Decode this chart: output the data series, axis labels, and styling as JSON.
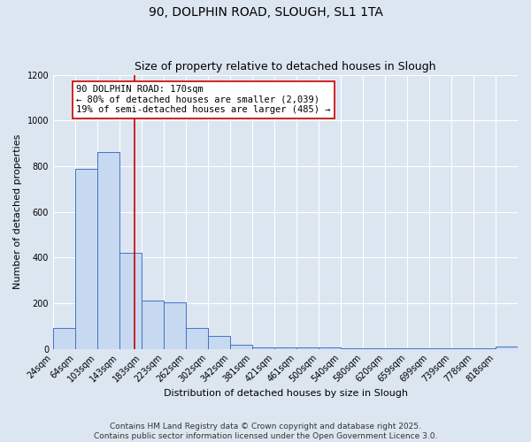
{
  "title": "90, DOLPHIN ROAD, SLOUGH, SL1 1TA",
  "subtitle": "Size of property relative to detached houses in Slough",
  "xlabel": "Distribution of detached houses by size in Slough",
  "ylabel": "Number of detached properties",
  "bin_edges_full": [
    24,
    64,
    103,
    143,
    183,
    223,
    262,
    302,
    342,
    381,
    421,
    461,
    500,
    540,
    580,
    620,
    659,
    699,
    739,
    778,
    818,
    858
  ],
  "bin_heights": [
    90,
    790,
    860,
    420,
    210,
    205,
    90,
    55,
    20,
    5,
    5,
    5,
    5,
    3,
    3,
    3,
    3,
    3,
    3,
    3,
    10
  ],
  "bar_color": "#c6d9f0",
  "bar_edge_color": "#4472c4",
  "background_color": "#dce6f1",
  "plot_bg_color": "#dce6f1",
  "vline_x": 170,
  "vline_color": "#cc0000",
  "annotation_text": "90 DOLPHIN ROAD: 170sqm\n← 80% of detached houses are smaller (2,039)\n19% of semi-detached houses are larger (485) →",
  "annotation_box_color": "white",
  "annotation_box_edge": "#cc0000",
  "ylim": [
    0,
    1200
  ],
  "yticks": [
    0,
    200,
    400,
    600,
    800,
    1000,
    1200
  ],
  "title_fontsize": 10,
  "subtitle_fontsize": 9,
  "axis_label_fontsize": 8,
  "tick_fontsize": 7,
  "annotation_fontsize": 7.5,
  "footer_fontsize": 6.5,
  "footer_line1": "Contains HM Land Registry data © Crown copyright and database right 2025.",
  "footer_line2": "Contains public sector information licensed under the Open Government Licence 3.0."
}
